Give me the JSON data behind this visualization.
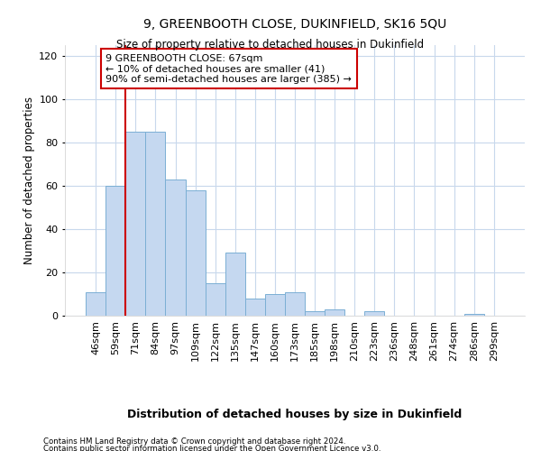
{
  "title": "9, GREENBOOTH CLOSE, DUKINFIELD, SK16 5QU",
  "subtitle": "Size of property relative to detached houses in Dukinfield",
  "xlabel_bottom": "Distribution of detached houses by size in Dukinfield",
  "ylabel": "Number of detached properties",
  "bar_labels": [
    "46sqm",
    "59sqm",
    "71sqm",
    "84sqm",
    "97sqm",
    "109sqm",
    "122sqm",
    "135sqm",
    "147sqm",
    "160sqm",
    "173sqm",
    "185sqm",
    "198sqm",
    "210sqm",
    "223sqm",
    "236sqm",
    "248sqm",
    "261sqm",
    "274sqm",
    "286sqm",
    "299sqm"
  ],
  "bar_values": [
    11,
    60,
    85,
    85,
    63,
    58,
    15,
    29,
    8,
    10,
    11,
    2,
    3,
    0,
    2,
    0,
    0,
    0,
    0,
    1,
    0
  ],
  "bar_color": "#c5d8f0",
  "bar_edge_color": "#7bafd4",
  "grid_color": "#c8d8ec",
  "background_color": "#ffffff",
  "vline_x_index": 2,
  "vline_color": "#cc0000",
  "annotation_text": "9 GREENBOOTH CLOSE: 67sqm\n← 10% of detached houses are smaller (41)\n90% of semi-detached houses are larger (385) →",
  "annotation_box_facecolor": "#ffffff",
  "annotation_box_edgecolor": "#cc0000",
  "ylim": [
    0,
    125
  ],
  "yticks": [
    0,
    20,
    40,
    60,
    80,
    100,
    120
  ],
  "footer_line1": "Contains HM Land Registry data © Crown copyright and database right 2024.",
  "footer_line2": "Contains public sector information licensed under the Open Government Licence v3.0."
}
